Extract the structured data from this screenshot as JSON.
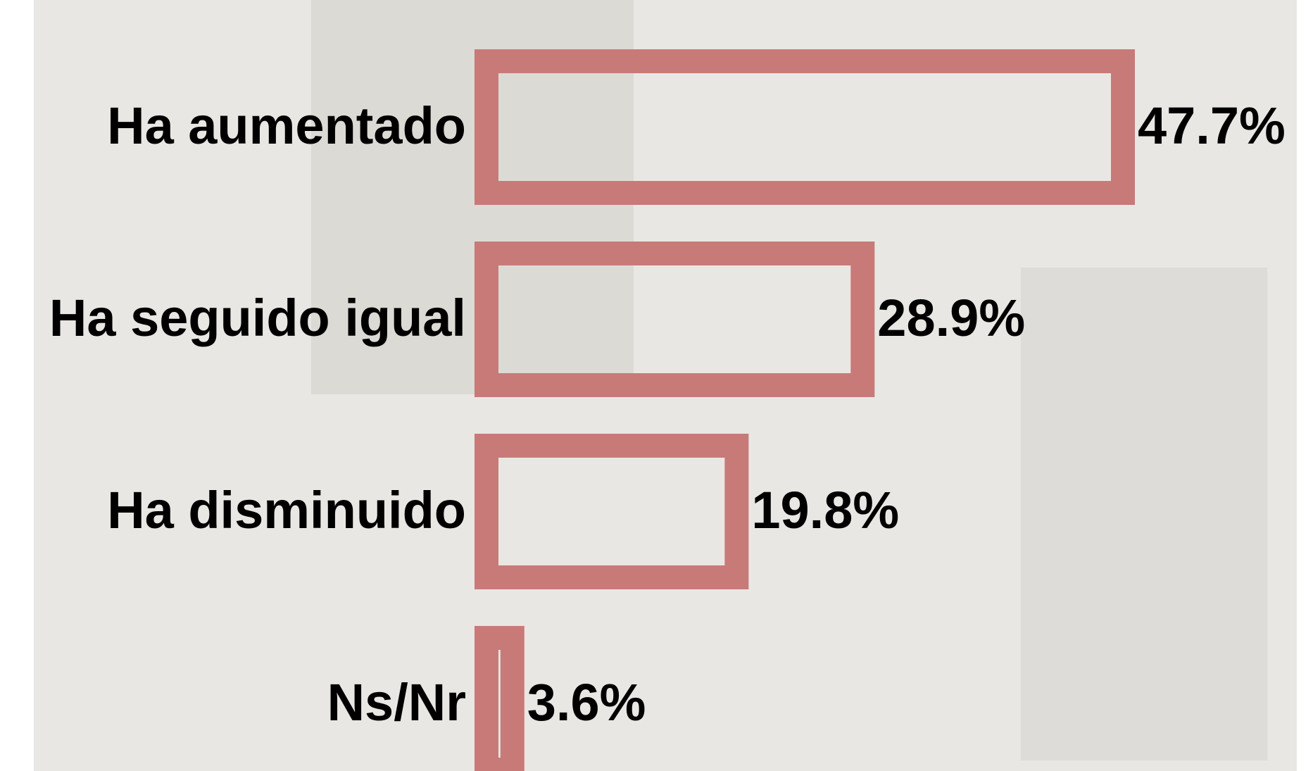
{
  "chart_data": {
    "type": "bar",
    "orientation": "horizontal",
    "categories": [
      "Ha aumentado",
      "Ha seguido igual",
      "Ha disminuido",
      "Ns/Nr"
    ],
    "values": [
      47.7,
      28.9,
      19.8,
      3.6
    ],
    "value_labels": [
      "47.7%",
      "28.9%",
      "19.8%",
      "3.6%"
    ],
    "color": "#c87a78"
  }
}
